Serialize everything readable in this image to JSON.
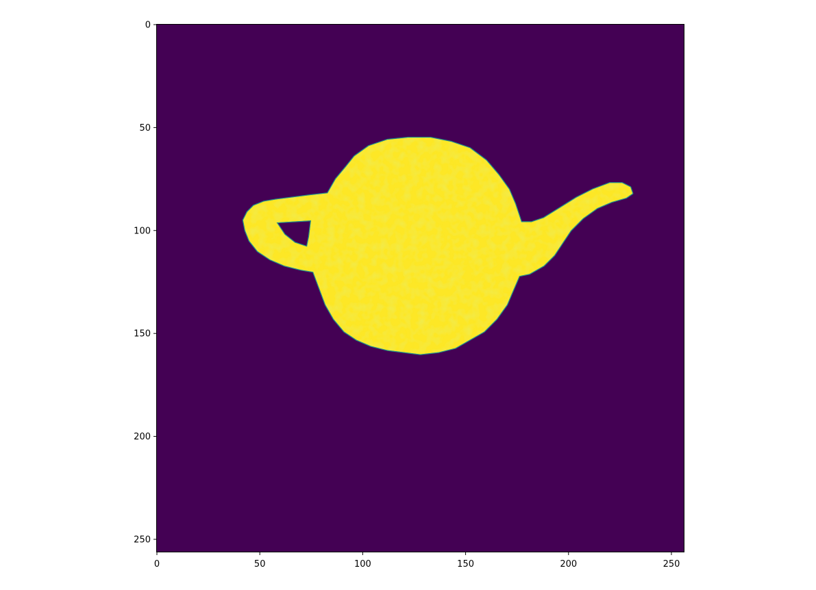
{
  "chart_data": {
    "type": "heatmap",
    "title": "",
    "xlabel": "",
    "ylabel": "",
    "image_size": [
      256,
      256
    ],
    "xlim": [
      0,
      256
    ],
    "ylim": [
      256,
      0
    ],
    "y_axis_inverted": true,
    "x_ticks": [
      0,
      50,
      100,
      150,
      200,
      250
    ],
    "y_ticks": [
      0,
      50,
      100,
      150,
      200,
      250
    ],
    "x_tick_labels": [
      "0",
      "50",
      "100",
      "150",
      "200",
      "250"
    ],
    "y_tick_labels": [
      "0",
      "50",
      "100",
      "150",
      "200",
      "250"
    ],
    "colormap": "viridis",
    "background_value": 0,
    "object_value": 1,
    "background_color": "#440154",
    "object_color": "#fde725",
    "edge_color": "#21918c",
    "object": "teapot silhouette",
    "object_extent": {
      "x_min": 42,
      "x_max": 231,
      "y_min": 55,
      "y_max": 160
    },
    "grid": false,
    "legend": "none"
  }
}
